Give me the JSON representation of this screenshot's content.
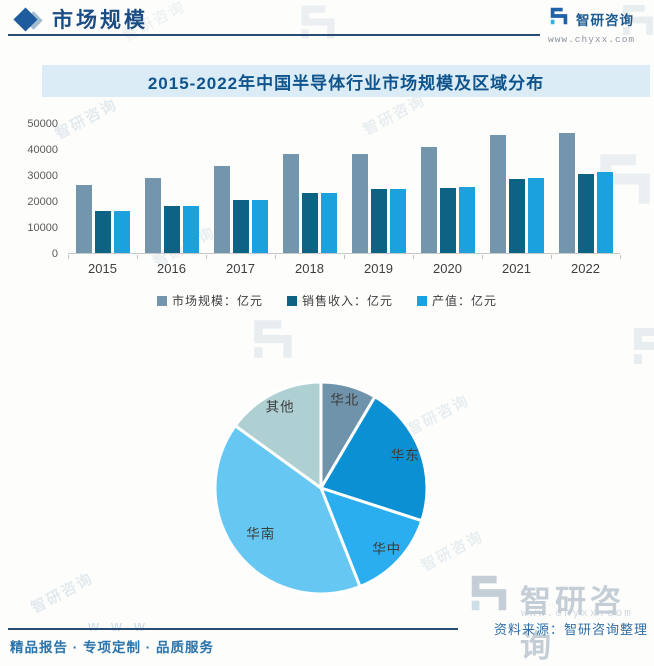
{
  "header": {
    "section_title": "市场规模",
    "brand_name": "智研咨询",
    "brand_url": "www.chyxx.com"
  },
  "chart_data": [
    {
      "type": "bar",
      "title": "2015-2022年中国半导体行业市场规模及区域分布",
      "categories": [
        "2015",
        "2016",
        "2017",
        "2018",
        "2019",
        "2020",
        "2021",
        "2022"
      ],
      "series": [
        {
          "name": "市场规模",
          "unit": "亿元",
          "color": "#7396ac",
          "values": [
            26000,
            29000,
            33500,
            38000,
            38200,
            40800,
            45500,
            46000
          ]
        },
        {
          "name": "销售收入",
          "unit": "亿元",
          "color": "#0e6385",
          "values": [
            16300,
            18100,
            20500,
            23000,
            24500,
            25200,
            28300,
            30500
          ]
        },
        {
          "name": "产值",
          "unit": "亿元",
          "color": "#1ba2dd",
          "values": [
            16300,
            18100,
            20500,
            23200,
            24600,
            25300,
            28900,
            31000
          ]
        }
      ],
      "ylim": [
        0,
        50000
      ],
      "yticks": [
        0,
        10000,
        20000,
        30000,
        40000,
        50000
      ],
      "legend_position": "bottom",
      "grid": false
    },
    {
      "type": "pie",
      "labels": [
        "华北",
        "华东",
        "华中",
        "华南",
        "其他"
      ],
      "values": [
        8.5,
        21.5,
        14,
        41,
        15
      ],
      "unit": "%",
      "colors": [
        "#6e93aa",
        "#0b91d3",
        "#2aaef0",
        "#66c7f2",
        "#aed0d3"
      ],
      "start_angle_deg": 0,
      "direction": "clockwise"
    }
  ],
  "footer": {
    "tagline": "精品报告 · 专项定制 · 品质服务",
    "source": "资料来源：智研咨询整理",
    "brand_name": "智研咨询",
    "brand_url": "www.chyxx.com",
    "www_fragment": "w w w"
  }
}
